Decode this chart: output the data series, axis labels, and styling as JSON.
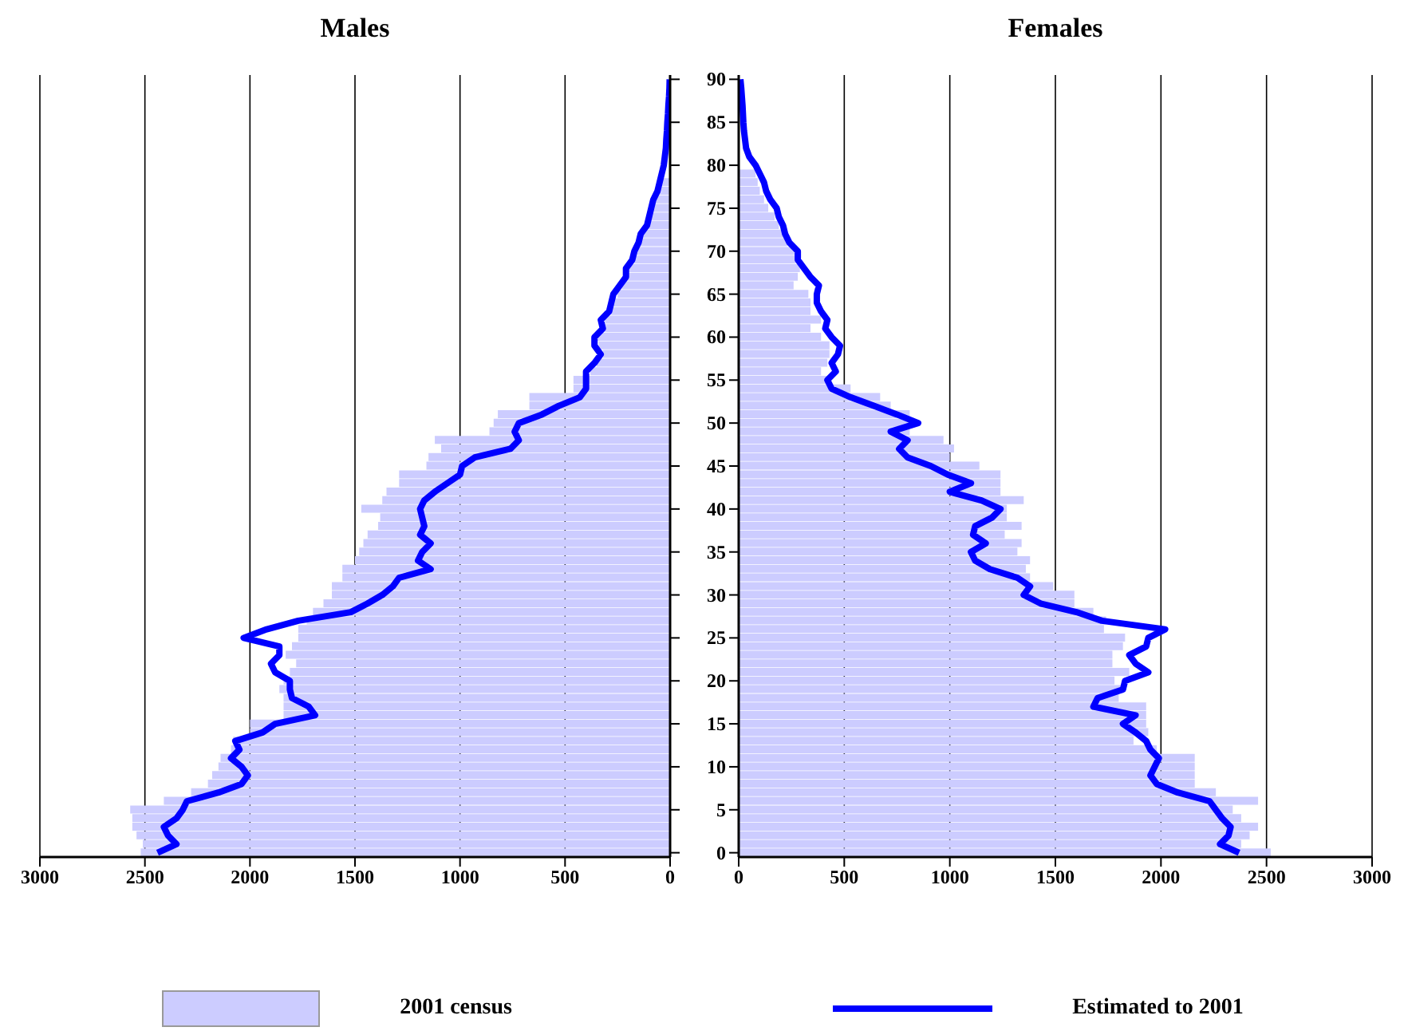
{
  "chart_data": [
    {
      "type": "bar",
      "title": "Males",
      "orientation": "horizontal",
      "xlim": [
        3000,
        0
      ],
      "xticks": [
        3000,
        2500,
        2000,
        1500,
        1000,
        500,
        0
      ],
      "grid": "x",
      "legend": "bottom",
      "tick_labels": "x",
      "categories": [
        "90",
        null,
        null,
        null,
        null,
        "85",
        null,
        null,
        null,
        null,
        "80",
        null,
        null,
        null,
        null,
        "75",
        null,
        null,
        null,
        null,
        "70",
        null,
        null,
        null,
        null,
        "65",
        null,
        null,
        null,
        null,
        "60",
        null,
        null,
        null,
        null,
        "55",
        null,
        null,
        null,
        null,
        "50",
        null,
        null,
        null,
        null,
        "45",
        null,
        null,
        null,
        null,
        "40",
        null,
        null,
        null,
        null,
        "35",
        null,
        null,
        null,
        null,
        "30",
        null,
        null,
        null,
        null,
        "25",
        null,
        null,
        null,
        null,
        "20",
        null,
        null,
        null,
        null,
        "15",
        null,
        null,
        null,
        null,
        "10",
        null,
        null,
        null,
        null,
        "5",
        null,
        null,
        null,
        null,
        "0"
      ],
      "series": [
        {
          "name": "2001 census",
          "color": "#ccccff",
          "values": [
            null,
            null,
            null,
            null,
            null,
            null,
            null,
            null,
            null,
            null,
            null,
            null,
            50,
            60,
            70,
            90,
            90,
            110,
            130,
            150,
            160,
            170,
            200,
            210,
            230,
            250,
            270,
            280,
            310,
            310,
            350,
            340,
            320,
            350,
            380,
            460,
            460,
            670,
            670,
            820,
            840,
            860,
            1120,
            1090,
            1150,
            1160,
            1290,
            1290,
            1350,
            1370,
            1470,
            1380,
            1390,
            1440,
            1460,
            1480,
            1500,
            1560,
            1560,
            1610,
            1610,
            1650,
            1700,
            1730,
            1770,
            1770,
            1800,
            1830,
            1780,
            1810,
            1840,
            1860,
            1840,
            1840,
            1840,
            2000,
            2000,
            2080,
            2090,
            2140,
            2150,
            2180,
            2200,
            2280,
            2410,
            2570,
            2560,
            2560,
            2540,
            2510,
            2520
          ]
        },
        {
          "name": "Estimated to 2001",
          "type": "line",
          "color": "#0000ff",
          "values": [
            2,
            3,
            5,
            8,
            10,
            13,
            15,
            18,
            20,
            25,
            30,
            40,
            50,
            60,
            80,
            90,
            100,
            110,
            140,
            150,
            170,
            180,
            210,
            210,
            240,
            270,
            280,
            290,
            330,
            320,
            360,
            360,
            330,
            360,
            400,
            400,
            400,
            430,
            530,
            610,
            720,
            740,
            720,
            760,
            930,
            990,
            1000,
            1060,
            1120,
            1170,
            1190,
            1180,
            1170,
            1190,
            1140,
            1180,
            1200,
            1140,
            1290,
            1320,
            1370,
            1440,
            1520,
            1770,
            1920,
            2030,
            1860,
            1860,
            1900,
            1880,
            1810,
            1810,
            1800,
            1720,
            1690,
            1880,
            1940,
            2070,
            2050,
            2090,
            2040,
            2010,
            2040,
            2150,
            2300,
            2320,
            2350,
            2410,
            2390,
            2350,
            2440
          ]
        }
      ]
    },
    {
      "type": "bar",
      "title": "Females",
      "orientation": "horizontal",
      "xlim": [
        0,
        3000
      ],
      "xticks": [
        0,
        500,
        1000,
        1500,
        2000,
        2500,
        3000
      ],
      "grid": "x",
      "categories": [
        "90",
        null,
        null,
        null,
        null,
        "85",
        null,
        null,
        null,
        null,
        "80",
        null,
        null,
        null,
        null,
        "75",
        null,
        null,
        null,
        null,
        "70",
        null,
        null,
        null,
        null,
        "65",
        null,
        null,
        null,
        null,
        "60",
        null,
        null,
        null,
        null,
        "55",
        null,
        null,
        null,
        null,
        "50",
        null,
        null,
        null,
        null,
        "45",
        null,
        null,
        null,
        null,
        "40",
        null,
        null,
        null,
        null,
        "35",
        null,
        null,
        null,
        null,
        "30",
        null,
        null,
        null,
        null,
        "25",
        null,
        null,
        null,
        null,
        "20",
        null,
        null,
        null,
        null,
        "15",
        null,
        null,
        null,
        null,
        "10",
        null,
        null,
        null,
        null,
        "5",
        null,
        null,
        null,
        null,
        "0"
      ],
      "series": [
        {
          "color": "#ccccff",
          "values": [
            null,
            null,
            null,
            null,
            null,
            null,
            null,
            null,
            null,
            null,
            null,
            80,
            90,
            100,
            120,
            140,
            170,
            190,
            210,
            230,
            270,
            270,
            290,
            280,
            260,
            330,
            340,
            340,
            390,
            340,
            390,
            430,
            430,
            420,
            390,
            430,
            530,
            670,
            720,
            810,
            810,
            810,
            970,
            1020,
            1000,
            1140,
            1240,
            1240,
            1240,
            1350,
            1270,
            1270,
            1340,
            1260,
            1340,
            1320,
            1380,
            1360,
            1380,
            1490,
            1590,
            1590,
            1680,
            1740,
            1730,
            1830,
            1820,
            1770,
            1770,
            1850,
            1780,
            1820,
            1800,
            1930,
            1930,
            1930,
            1940,
            1870,
            1980,
            2160,
            2160,
            2160,
            2160,
            2260,
            2460,
            2340,
            2380,
            2460,
            2420,
            2380,
            2520
          ]
        },
        {
          "type": "line",
          "color": "#0000ff",
          "values": [
            8,
            12,
            15,
            18,
            20,
            22,
            25,
            30,
            35,
            50,
            80,
            100,
            120,
            130,
            150,
            180,
            190,
            210,
            220,
            240,
            280,
            280,
            310,
            340,
            380,
            370,
            370,
            390,
            420,
            410,
            440,
            480,
            470,
            440,
            460,
            420,
            440,
            530,
            640,
            750,
            850,
            720,
            800,
            760,
            800,
            910,
            990,
            1100,
            1000,
            1150,
            1240,
            1200,
            1120,
            1110,
            1170,
            1100,
            1120,
            1190,
            1320,
            1380,
            1350,
            1430,
            1600,
            1720,
            2020,
            1940,
            1930,
            1850,
            1880,
            1940,
            1830,
            1820,
            1700,
            1680,
            1880,
            1820,
            1880,
            1930,
            1950,
            1990,
            1970,
            1950,
            1980,
            2080,
            2230,
            2260,
            2290,
            2330,
            2320,
            2280,
            2370
          ]
        }
      ]
    }
  ]
}
